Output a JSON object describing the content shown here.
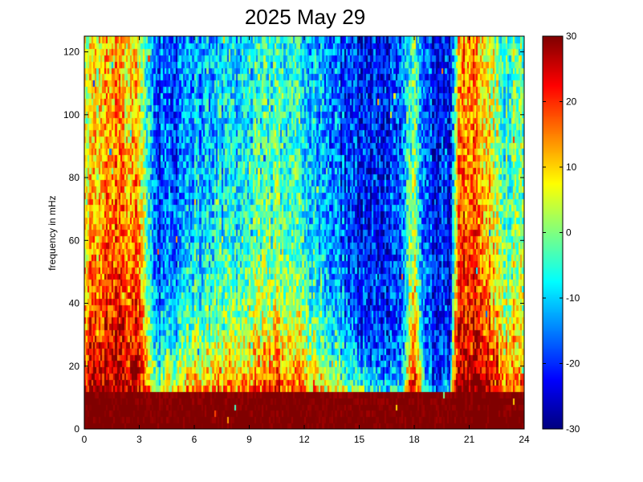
{
  "chart_data": {
    "type": "heatmap",
    "title": "2025 May 29",
    "xlabel": "",
    "ylabel": "frequency in mHz",
    "xlim": [
      0,
      24
    ],
    "ylim": [
      0,
      125
    ],
    "x_ticks": [
      0,
      3,
      6,
      9,
      12,
      15,
      18,
      21,
      24
    ],
    "y_ticks": [
      0,
      20,
      40,
      60,
      80,
      100,
      120
    ],
    "x_tick_labels": [
      "0",
      "3",
      "6",
      "9",
      "12",
      "15",
      "18",
      "21",
      "24"
    ],
    "y_tick_labels": [
      "0",
      "20",
      "40",
      "60",
      "80",
      "100",
      "120"
    ],
    "colorbar": {
      "range": [
        -30,
        30
      ],
      "ticks": [
        -30,
        -20,
        -10,
        0,
        10,
        20,
        30
      ],
      "tick_labels": [
        "-30",
        "-20",
        "-10",
        "0",
        "10",
        "20",
        "30"
      ],
      "colormap": "jet"
    },
    "grid": false,
    "x_bin_hours": 0.1,
    "y_bin_mhz": 2,
    "power_profile": {
      "x_hours": [
        0,
        1,
        2,
        3,
        3.5,
        4,
        5,
        6,
        7,
        8,
        9,
        10,
        11,
        12,
        13,
        14,
        15,
        16,
        17,
        17.5,
        18,
        18.5,
        19,
        19.5,
        20,
        20.5,
        21,
        22,
        23,
        24
      ],
      "level_at_120mHz": [
        3,
        6,
        8,
        5,
        -8,
        -18,
        -18,
        -12,
        -10,
        -10,
        -8,
        -5,
        -5,
        -8,
        -12,
        -18,
        -22,
        -22,
        -20,
        -15,
        0,
        -15,
        -20,
        -20,
        -22,
        10,
        12,
        5,
        -5,
        0
      ],
      "decay_height_mHz": [
        35,
        55,
        70,
        60,
        20,
        15,
        20,
        25,
        25,
        25,
        25,
        30,
        30,
        25,
        20,
        15,
        12,
        10,
        8,
        8,
        40,
        10,
        6,
        5,
        8,
        60,
        70,
        40,
        30,
        25
      ],
      "floor_level": 32
    },
    "noise_amplitude": 9
  }
}
